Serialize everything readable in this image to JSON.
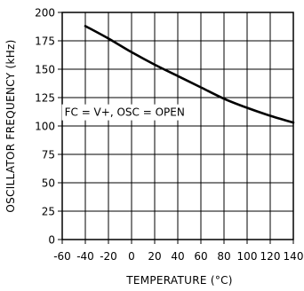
{
  "chart_data": {
    "type": "line",
    "title": "",
    "xlabel": "TEMPERATURE (°C)",
    "ylabel": "OSCILLATOR FREQUENCY (kHz)",
    "xlim": [
      -60,
      140
    ],
    "ylim": [
      0,
      200
    ],
    "x_ticks": [
      -60,
      -40,
      -20,
      0,
      20,
      40,
      60,
      80,
      100,
      120,
      140
    ],
    "x_tick_labels": [
      "-60",
      "-40",
      "-20",
      "0",
      "20",
      "40",
      "60",
      "80",
      "100",
      "120",
      "140"
    ],
    "y_ticks": [
      0,
      25,
      50,
      75,
      100,
      125,
      150,
      175,
      200
    ],
    "y_tick_labels": [
      "0",
      "25",
      "50",
      "75",
      "100",
      "125",
      "150",
      "175",
      "200"
    ],
    "grid": true,
    "legend": "none",
    "annotations": [
      {
        "text": "FC = V+, OSC = OPEN",
        "x": -58,
        "y": 112
      }
    ],
    "series": [
      {
        "x": [
          -40,
          -20,
          0,
          20,
          40,
          60,
          80,
          100,
          120,
          140
        ],
        "y": [
          188,
          177,
          165,
          154,
          144,
          134,
          124,
          116,
          109,
          103
        ]
      }
    ]
  }
}
